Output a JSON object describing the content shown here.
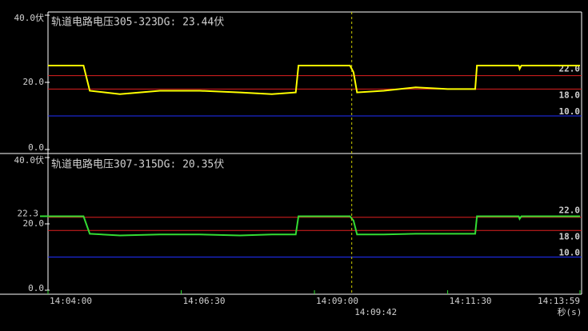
{
  "chart_data": [
    {
      "type": "line",
      "title": "轨道电路电压305-323DG: 23.44伏",
      "x": [
        "14:04:00",
        "14:04:40",
        "14:04:47",
        "14:05:21",
        "14:06:06",
        "14:06:51",
        "14:07:36",
        "14:08:12",
        "14:08:39",
        "14:08:42",
        "14:09:40",
        "14:09:44",
        "14:09:48",
        "14:10:18",
        "14:10:54",
        "14:11:30",
        "14:12:01",
        "14:12:03",
        "14:12:50",
        "14:12:51",
        "14:12:53",
        "14:13:59"
      ],
      "series": [
        {
          "color": "#ffff00",
          "values": [
            25.0,
            25.0,
            17.5,
            16.5,
            17.5,
            17.5,
            17.0,
            16.5,
            17.0,
            25.0,
            25.0,
            23.0,
            17.0,
            17.5,
            18.5,
            18.0,
            18.0,
            25.0,
            25.0,
            24.0,
            25.0,
            25.0
          ]
        }
      ],
      "xlim": [
        "14:04:00",
        "14:13:59"
      ],
      "ylim": [
        0,
        40
      ],
      "yticks": [
        {
          "value": 0,
          "label": "0.0"
        },
        {
          "value": 20,
          "label": "20.0"
        },
        {
          "value": 40,
          "label": "40.0伏"
        }
      ],
      "thresholds": [
        {
          "value": 22,
          "label": "22.0",
          "color": "#e02020"
        },
        {
          "value": 18,
          "label": "18.0",
          "color": "#e02020"
        },
        {
          "value": 10,
          "label": "10.0",
          "color": "#2030ff"
        }
      ],
      "grid": false
    },
    {
      "type": "line",
      "title": "轨道电路电压307-315DG: 20.35伏",
      "x": [
        "14:04:00",
        "14:04:40",
        "14:04:47",
        "14:05:21",
        "14:06:06",
        "14:06:51",
        "14:07:36",
        "14:08:12",
        "14:08:39",
        "14:08:42",
        "14:09:40",
        "14:09:44",
        "14:09:48",
        "14:10:18",
        "14:10:54",
        "14:11:30",
        "14:12:01",
        "14:12:03",
        "14:12:50",
        "14:12:51",
        "14:12:53",
        "14:13:59"
      ],
      "series": [
        {
          "color": "#33dd33",
          "values": [
            22.3,
            22.3,
            17.0,
            16.5,
            16.8,
            16.8,
            16.5,
            16.8,
            16.8,
            22.3,
            22.3,
            21.0,
            16.8,
            16.8,
            17.0,
            17.0,
            17.0,
            22.3,
            22.3,
            21.5,
            22.3,
            22.3
          ]
        }
      ],
      "xlim": [
        "14:04:00",
        "14:13:59"
      ],
      "ylim": [
        0,
        40
      ],
      "yticks": [
        {
          "value": 0,
          "label": "0.0"
        },
        {
          "value": 20,
          "label": "20.0"
        },
        {
          "value": 40,
          "label": "40.0伏"
        }
      ],
      "thresholds": [
        {
          "value": 22,
          "label": "22.0",
          "color": "#e02020"
        },
        {
          "value": 18,
          "label": "18.0",
          "color": "#e02020"
        },
        {
          "value": 10,
          "label": "10.0",
          "color": "#2030ff"
        }
      ],
      "marker": {
        "value": 22.3,
        "label": "22.3"
      },
      "xticks": [
        "14:04:00",
        "14:06:30",
        "14:09:00",
        "14:11:30",
        "14:13:59"
      ],
      "xlabel": "秒(s)",
      "cursor": "14:09:42",
      "grid": false
    }
  ]
}
